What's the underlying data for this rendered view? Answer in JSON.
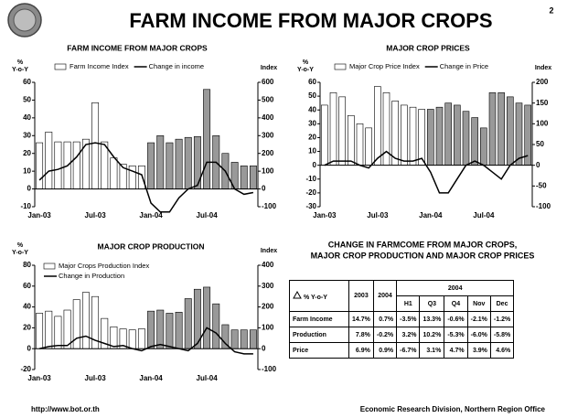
{
  "header": {
    "title": "FARM INCOME FROM MAJOR CROPS",
    "page": "2"
  },
  "footer": {
    "left": "http://www.bot.or.th",
    "right": "Economic Research Division, Northern Region Office"
  },
  "chart_data": [
    {
      "type": "bar_line",
      "title": "FARM INCOME FROM MAJOR CROPS",
      "y_label": [
        "%",
        "Y-o-Y"
      ],
      "y2_label": "Index",
      "legend": "row",
      "categories": [
        "Jan-03",
        null,
        null,
        null,
        null,
        null,
        "Jul-03",
        null,
        null,
        null,
        null,
        null,
        "Jan-04",
        null,
        null,
        null,
        null,
        null,
        "Jul-04",
        null,
        null,
        null,
        null,
        null
      ],
      "series": [
        {
          "name": "Farm Income Index",
          "type": "bar",
          "axis": "y2",
          "colors": [
            "#ffffff",
            "#ffffff",
            "#ffffff",
            "#ffffff",
            "#ffffff",
            "#ffffff",
            "#ffffff",
            "#ffffff",
            "#ffffff",
            "#ffffff",
            "#ffffff",
            "#ffffff",
            "#999999",
            "#999999",
            "#999999",
            "#999999",
            "#999999",
            "#999999",
            "#999999",
            "#999999",
            "#999999",
            "#999999",
            "#999999",
            "#999999"
          ],
          "values": [
            260,
            320,
            265,
            265,
            265,
            280,
            485,
            265,
            175,
            140,
            130,
            130,
            260,
            300,
            260,
            280,
            290,
            295,
            560,
            300,
            200,
            150,
            130,
            130
          ]
        },
        {
          "name": "Change in income",
          "type": "line",
          "color": "#000000",
          "values": [
            5,
            10,
            11,
            13,
            18,
            25,
            26,
            25,
            18,
            12,
            10,
            8,
            -8,
            -13,
            -13,
            -5,
            0,
            2,
            15,
            15,
            10,
            0,
            -3,
            -2
          ]
        }
      ],
      "ylim": [
        -10,
        60
      ],
      "yticks": [
        -10,
        0,
        10,
        20,
        30,
        40,
        50,
        60
      ],
      "y2lim": [
        -100,
        600
      ],
      "y2ticks": [
        -100,
        0,
        100,
        200,
        300,
        400,
        500,
        600
      ]
    },
    {
      "type": "bar_line",
      "title": "MAJOR CROP PRICES",
      "y_label": [
        "%",
        "Y-o-Y"
      ],
      "y2_label": "Index",
      "legend": "row",
      "categories": [
        "Jan-03",
        null,
        null,
        null,
        null,
        null,
        "Jul-03",
        null,
        null,
        null,
        null,
        null,
        "Jan-04",
        null,
        null,
        null,
        null,
        null,
        "Jul-04",
        null,
        null,
        null,
        null,
        null
      ],
      "series": [
        {
          "name": "Major Crop Price Index",
          "type": "bar",
          "axis": "y2",
          "colors": [
            "#ffffff",
            "#ffffff",
            "#ffffff",
            "#ffffff",
            "#ffffff",
            "#ffffff",
            "#ffffff",
            "#ffffff",
            "#ffffff",
            "#ffffff",
            "#ffffff",
            "#ffffff",
            "#999999",
            "#999999",
            "#999999",
            "#999999",
            "#999999",
            "#999999",
            "#999999",
            "#999999",
            "#999999",
            "#999999",
            "#999999",
            "#999999"
          ],
          "values": [
            145,
            175,
            165,
            120,
            100,
            90,
            190,
            175,
            155,
            145,
            140,
            135,
            135,
            140,
            150,
            145,
            130,
            115,
            90,
            175,
            175,
            165,
            150,
            145
          ]
        },
        {
          "name": "Change in Price",
          "type": "line",
          "color": "#000000",
          "values": [
            0,
            3,
            3,
            3,
            0,
            -2,
            5,
            10,
            5,
            3,
            3,
            5,
            -5,
            -20,
            -20,
            -10,
            0,
            3,
            0,
            -5,
            -10,
            0,
            5,
            7
          ]
        }
      ],
      "ylim": [
        -30,
        60
      ],
      "yticks": [
        -30,
        -20,
        -10,
        0,
        10,
        20,
        30,
        40,
        50,
        60
      ],
      "y2lim": [
        -100,
        200
      ],
      "y2ticks": [
        -100,
        -50,
        0,
        50,
        100,
        150,
        200
      ]
    },
    {
      "type": "bar_line",
      "title": "MAJOR CROP PRODUCTION",
      "y_label": [
        "%",
        "Y-o-Y"
      ],
      "y2_label": "Index",
      "legend": "column",
      "categories": [
        "Jan-03",
        null,
        null,
        null,
        null,
        null,
        "Jul-03",
        null,
        null,
        null,
        null,
        null,
        "Jan-04",
        null,
        null,
        null,
        null,
        null,
        "Jul-04",
        null,
        null,
        null,
        null,
        null
      ],
      "series": [
        {
          "name": "Major Crops Production Index",
          "type": "bar",
          "axis": "y2",
          "colors": [
            "#ffffff",
            "#ffffff",
            "#ffffff",
            "#ffffff",
            "#ffffff",
            "#ffffff",
            "#ffffff",
            "#ffffff",
            "#ffffff",
            "#ffffff",
            "#ffffff",
            "#ffffff",
            "#999999",
            "#999999",
            "#999999",
            "#999999",
            "#999999",
            "#999999",
            "#999999",
            "#999999",
            "#999999",
            "#999999",
            "#999999",
            "#999999"
          ],
          "values": [
            170,
            180,
            155,
            185,
            235,
            270,
            250,
            145,
            105,
            95,
            90,
            95,
            180,
            185,
            170,
            175,
            240,
            285,
            295,
            215,
            115,
            90,
            90,
            90
          ]
        },
        {
          "name": "Change in Production",
          "type": "line",
          "color": "#000000",
          "values": [
            0,
            2,
            3,
            3,
            10,
            12,
            8,
            5,
            2,
            3,
            0,
            -2,
            2,
            4,
            2,
            0,
            -2,
            5,
            20,
            15,
            5,
            -3,
            -5,
            -5
          ]
        }
      ],
      "ylim": [
        -20,
        80
      ],
      "yticks": [
        -20,
        0,
        20,
        40,
        60,
        80
      ],
      "y2lim": [
        -100,
        400
      ],
      "y2ticks": [
        -100,
        0,
        100,
        200,
        300,
        400
      ]
    }
  ],
  "table": {
    "title": [
      "CHANGE IN FARMCOME FROM MAJOR CROPS,",
      "MAJOR CROP PRODUCTION AND MAJOR CROP PRICES"
    ],
    "corner": "% Y-o-Y",
    "columns": [
      "2003",
      "2004"
    ],
    "group": "2004",
    "subcolumns": [
      "H1",
      "Q3",
      "Q4",
      "Nov",
      "Dec"
    ],
    "rows": [
      [
        "Farm Income",
        "14.7%",
        "0.7%",
        "-3.5%",
        "13.3%",
        "-0.6%",
        "-2.1%",
        "-1.2%"
      ],
      [
        "Production",
        "7.8%",
        "-0.2%",
        "3.2%",
        "10.2%",
        "-5.3%",
        "-6.0%",
        "-5.8%"
      ],
      [
        "Price",
        "6.9%",
        "0.9%",
        "-6.7%",
        "3.1%",
        "4.7%",
        "3.9%",
        "4.6%"
      ]
    ]
  }
}
